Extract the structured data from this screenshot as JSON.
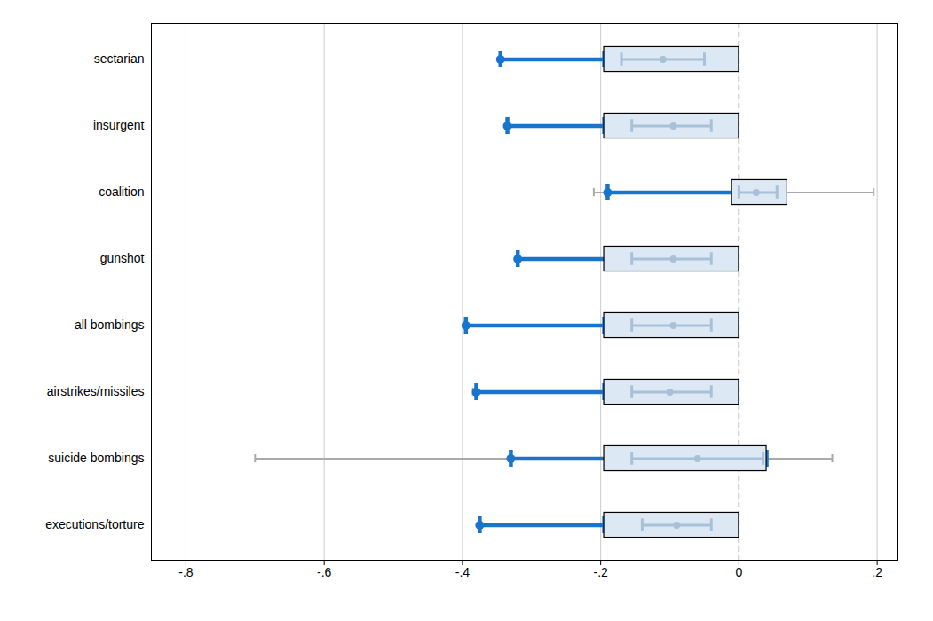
{
  "chart_data": {
    "type": "interval",
    "orientation": "horizontal",
    "categories": [
      "sectarian",
      "insurgent",
      "coalition",
      "gunshot",
      "all bombings",
      "airstrikes/missiles",
      "suicide bombings",
      "executions/torture"
    ],
    "series": [
      {
        "type": "interval",
        "color": "#AAAAAA",
        "low": [
          -0.345,
          -0.335,
          -0.21,
          -0.32,
          -0.395,
          -0.385,
          -0.7,
          -0.375
        ],
        "high": [
          -0.195,
          -0.195,
          0.195,
          -0.19,
          -0.195,
          -0.195,
          0.135,
          -0.195
        ]
      },
      {
        "type": "interval",
        "color": "#1874CD",
        "low": [
          -0.345,
          -0.335,
          -0.19,
          -0.32,
          -0.395,
          -0.38,
          -0.33,
          -0.375
        ],
        "high": [
          -0.195,
          -0.195,
          0.03,
          -0.19,
          -0.195,
          -0.195,
          0.04,
          -0.195
        ]
      },
      {
        "type": "dot",
        "color": "#1874CD",
        "values": [
          -0.345,
          -0.335,
          -0.19,
          -0.32,
          -0.395,
          -0.38,
          -0.33,
          -0.375
        ]
      },
      {
        "type": "box",
        "color": "#DCE9F5",
        "low": [
          -0.195,
          -0.195,
          -0.01,
          -0.195,
          -0.195,
          -0.195,
          -0.195,
          -0.195
        ],
        "high": [
          0.0,
          0.0,
          0.07,
          0.0,
          0.0,
          0.0,
          0.04,
          0.0
        ]
      },
      {
        "type": "interval",
        "color": "#A8C0D8",
        "low": [
          -0.17,
          -0.155,
          0.0,
          -0.155,
          -0.155,
          -0.155,
          -0.155,
          -0.14
        ],
        "high": [
          -0.05,
          -0.04,
          0.055,
          -0.04,
          -0.04,
          -0.04,
          0.035,
          -0.04
        ]
      },
      {
        "type": "dot",
        "color": "#A8C0D8",
        "values": [
          -0.11,
          -0.095,
          0.025,
          -0.095,
          -0.095,
          -0.1,
          -0.06,
          -0.09
        ]
      }
    ],
    "reference_x": 0,
    "xlim": [
      -0.85,
      0.23
    ],
    "xticks": [
      {
        "value": -0.8,
        "label": "-.8"
      },
      {
        "value": -0.6,
        "label": "-.6"
      },
      {
        "value": -0.4,
        "label": "-.4"
      },
      {
        "value": -0.2,
        "label": "-.2"
      },
      0,
      {
        "value": 0.2,
        "label": ".2"
      }
    ],
    "grid": true
  }
}
